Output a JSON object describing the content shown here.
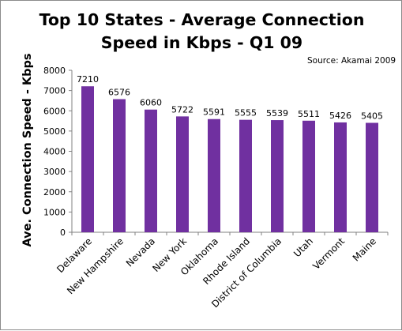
{
  "chart_data": {
    "type": "bar",
    "title_lines": [
      "Top 10 States - Average Connection",
      "Speed in Kbps - Q1 09"
    ],
    "source": "Source: Akamai 2009",
    "ylabel": "Ave. Connection Speed - Kbps",
    "xlabel": "",
    "ylim": [
      0,
      8000
    ],
    "ytick_step": 1000,
    "grid": false,
    "legend": "none",
    "bar_color": "#7030A0",
    "categories": [
      "Delaware",
      "New Hampshire",
      "Nevada",
      "New York",
      "Oklahoma",
      "Rhode Island",
      "District of Columbia",
      "Utah",
      "Vermont",
      "Maine"
    ],
    "values": [
      7210,
      6576,
      6060,
      5722,
      5591,
      5555,
      5539,
      5511,
      5426,
      5405
    ]
  }
}
